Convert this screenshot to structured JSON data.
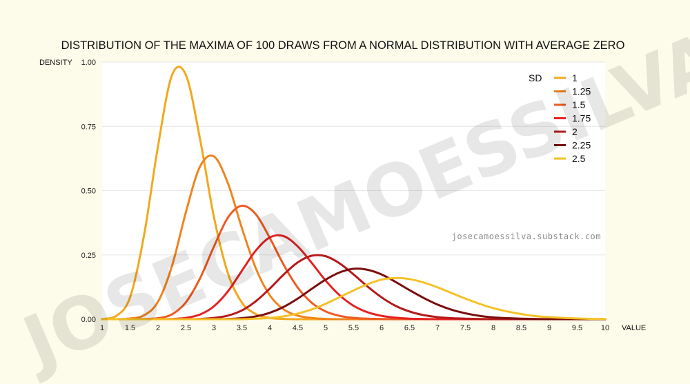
{
  "chart_data": {
    "type": "line",
    "title": "DISTRIBUTION OF THE MAXIMA OF 100 DRAWS FROM A NORMAL DISTRIBUTION WITH AVERAGE ZERO",
    "xlabel": "VALUE",
    "ylabel": "DENSITY",
    "xlim": [
      1,
      10
    ],
    "ylim": [
      0,
      1
    ],
    "x_ticks": [
      "1",
      "1.5",
      "2",
      "2.5",
      "3",
      "3.5",
      "4",
      "4.5",
      "5",
      "5.5",
      "6",
      "6.5",
      "7",
      "7.5",
      "8",
      "8.5",
      "9",
      "9.5",
      "10"
    ],
    "y_ticks": [
      "0.00",
      "0.25",
      "0.50",
      "0.75",
      "1.00"
    ],
    "grid": "horizontal",
    "legend": {
      "title": "SD",
      "position": "top-right"
    },
    "x": [
      1,
      1.25,
      1.5,
      1.75,
      2,
      2.25,
      2.5,
      2.75,
      3,
      3.25,
      3.5,
      3.75,
      4,
      4.25,
      4.5,
      4.75,
      5,
      5.25,
      5.5,
      5.75,
      6,
      6.25,
      6.5,
      6.75,
      7,
      7.25,
      7.5,
      7.75,
      8,
      8.25,
      8.5,
      8.75,
      9,
      9.25,
      9.5,
      9.75,
      10
    ],
    "series": [
      {
        "name": "1",
        "color": "#f2a81d",
        "values": [
          0.001,
          0.012,
          0.085,
          0.326,
          0.673,
          0.949,
          0.949,
          0.703,
          0.398,
          0.179,
          0.065,
          0.02,
          0.005,
          0.001,
          0.0,
          0.0,
          0.0,
          0.0,
          0.0,
          0.0,
          0.0,
          0.0,
          0.0,
          0.0,
          0.0,
          0.0,
          0.0,
          0.0,
          0.0,
          0.0,
          0.0,
          0.0,
          0.0,
          0.0,
          0.0,
          0.0,
          0.0
        ]
      },
      {
        "name": "1.25",
        "color": "#f0841f",
        "values": [
          0.0,
          0.0,
          0.003,
          0.015,
          0.068,
          0.207,
          0.417,
          0.593,
          0.633,
          0.529,
          0.355,
          0.198,
          0.093,
          0.038,
          0.014,
          0.005,
          0.001,
          0.0,
          0.0,
          0.0,
          0.0,
          0.0,
          0.0,
          0.0,
          0.0,
          0.0,
          0.0,
          0.0,
          0.0,
          0.0,
          0.0,
          0.0,
          0.0,
          0.0,
          0.0,
          0.0,
          0.0
        ]
      },
      {
        "name": "1.5",
        "color": "#ef5a22",
        "values": [
          0.0,
          0.0,
          0.0,
          0.001,
          0.004,
          0.019,
          0.066,
          0.158,
          0.282,
          0.395,
          0.441,
          0.408,
          0.316,
          0.211,
          0.123,
          0.064,
          0.03,
          0.013,
          0.005,
          0.002,
          0.001,
          0.0,
          0.0,
          0.0,
          0.0,
          0.0,
          0.0,
          0.0,
          0.0,
          0.0,
          0.0,
          0.0,
          0.0,
          0.0,
          0.0,
          0.0,
          0.0
        ]
      },
      {
        "name": "1.75",
        "color": "#e32222",
        "values": [
          0.0,
          0.0,
          0.0,
          0.0,
          0.0,
          0.001,
          0.005,
          0.018,
          0.05,
          0.108,
          0.188,
          0.267,
          0.318,
          0.323,
          0.283,
          0.219,
          0.15,
          0.093,
          0.052,
          0.027,
          0.013,
          0.006,
          0.002,
          0.001,
          0.0,
          0.0,
          0.0,
          0.0,
          0.0,
          0.0,
          0.0,
          0.0,
          0.0,
          0.0,
          0.0,
          0.0,
          0.0
        ]
      },
      {
        "name": "2",
        "color": "#b51a1a",
        "values": [
          0.0,
          0.0,
          0.0,
          0.0,
          0.0,
          0.0,
          0.0,
          0.001,
          0.005,
          0.014,
          0.034,
          0.07,
          0.119,
          0.174,
          0.221,
          0.247,
          0.245,
          0.217,
          0.174,
          0.127,
          0.085,
          0.052,
          0.03,
          0.016,
          0.008,
          0.004,
          0.002,
          0.001,
          0.0,
          0.0,
          0.0,
          0.0,
          0.0,
          0.0,
          0.0,
          0.0,
          0.0
        ]
      },
      {
        "name": "2.25",
        "color": "#7a0d0d",
        "values": [
          0.0,
          0.0,
          0.0,
          0.0,
          0.0,
          0.0,
          0.0,
          0.0,
          0.0,
          0.001,
          0.004,
          0.011,
          0.025,
          0.048,
          0.08,
          0.118,
          0.154,
          0.182,
          0.196,
          0.192,
          0.174,
          0.145,
          0.113,
          0.083,
          0.057,
          0.037,
          0.023,
          0.013,
          0.007,
          0.004,
          0.002,
          0.001,
          0.0,
          0.0,
          0.0,
          0.0,
          0.0
        ]
      },
      {
        "name": "2.5",
        "color": "#f4c127",
        "values": [
          0.0,
          0.0,
          0.0,
          0.0,
          0.0,
          0.0,
          0.0,
          0.0,
          0.0,
          0.0,
          0.0,
          0.002,
          0.005,
          0.011,
          0.022,
          0.038,
          0.06,
          0.086,
          0.112,
          0.136,
          0.154,
          0.16,
          0.156,
          0.143,
          0.124,
          0.102,
          0.08,
          0.06,
          0.043,
          0.03,
          0.02,
          0.012,
          0.008,
          0.005,
          0.003,
          0.001,
          0.001
        ]
      }
    ]
  },
  "watermark": "JOSECAMOESSILVA",
  "source_url": "josecamoessilva.substack.com"
}
